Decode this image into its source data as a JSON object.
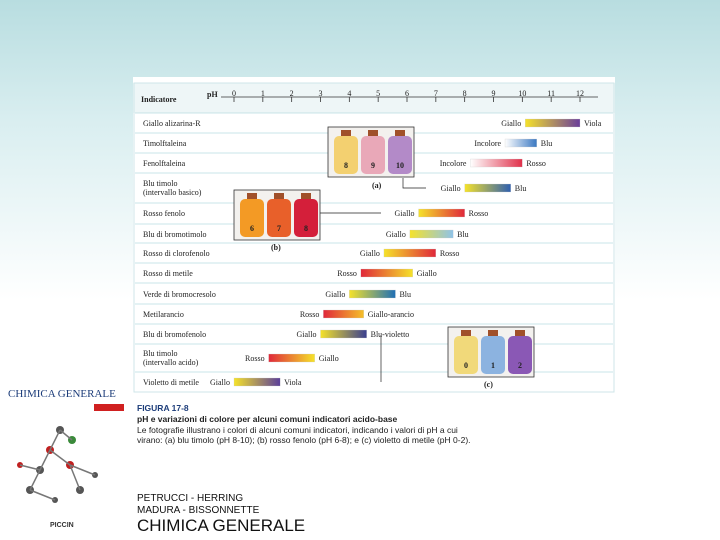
{
  "chart_data": {
    "type": "range",
    "y_label": "Indicatore",
    "x_label": "pH",
    "xlim": [
      0,
      12
    ],
    "xticks": [
      0,
      1,
      2,
      3,
      4,
      5,
      6,
      7,
      8,
      9,
      10,
      11,
      12
    ],
    "rows": [
      {
        "name": "Giallo alizarina-R",
        "low": 10.1,
        "high": 12.0,
        "low_label": "Giallo",
        "high_label": "Viola",
        "colors": [
          "#f5e22a",
          "#6a3d9a"
        ]
      },
      {
        "name": "Timolftaleina",
        "low": 9.4,
        "high": 10.5,
        "low_label": "Incolore",
        "high_label": "Blu",
        "colors": [
          "#ffffff",
          "#3a78c2"
        ]
      },
      {
        "name": "Fenolftaleina",
        "low": 8.2,
        "high": 10.0,
        "low_label": "Incolore",
        "high_label": "Rosso",
        "colors": [
          "#ffffff",
          "#e0304a"
        ]
      },
      {
        "name": "Blu timolo\n(intervallo basico)",
        "low": 8.0,
        "high": 9.6,
        "low_label": "Giallo",
        "high_label": "Blu",
        "colors": [
          "#f5e22a",
          "#2e5fb0"
        ]
      },
      {
        "name": "Rosso fenolo",
        "low": 6.4,
        "high": 8.0,
        "low_label": "Giallo",
        "high_label": "Rosso",
        "colors": [
          "#f5e22a",
          "#e0283a"
        ]
      },
      {
        "name": "Blu di bromotimolo",
        "low": 6.1,
        "high": 7.6,
        "low_label": "Giallo",
        "high_label": "Blu",
        "colors": [
          "#f5e22a",
          "#8fc3e8"
        ]
      },
      {
        "name": "Rosso di clorofenolo",
        "low": 5.2,
        "high": 7.0,
        "low_label": "Giallo",
        "high_label": "Rosso",
        "colors": [
          "#f5e22a",
          "#e0283a"
        ]
      },
      {
        "name": "Rosso di metile",
        "low": 4.4,
        "high": 6.2,
        "low_label": "Rosso",
        "high_label": "Giallo",
        "colors": [
          "#e0283a",
          "#f5e22a"
        ]
      },
      {
        "name": "Verde di bromocresolo",
        "low": 4.0,
        "high": 5.6,
        "low_label": "Giallo",
        "high_label": "Blu",
        "colors": [
          "#f5e22a",
          "#1f6fb5"
        ]
      },
      {
        "name": "Metilarancio",
        "low": 3.1,
        "high": 4.5,
        "low_label": "Rosso",
        "high_label": "Giallo-arancio",
        "colors": [
          "#e0283a",
          "#f5c02a"
        ]
      },
      {
        "name": "Blu di bromofenolo",
        "low": 3.0,
        "high": 4.6,
        "low_label": "Giallo",
        "high_label": "Blu-violetto",
        "colors": [
          "#f5e22a",
          "#3a3f8f"
        ]
      },
      {
        "name": "Blu timolo\n(intervallo acido)",
        "low": 1.2,
        "high": 2.8,
        "low_label": "Rosso",
        "high_label": "Giallo",
        "colors": [
          "#e0283a",
          "#f5e22a"
        ]
      },
      {
        "name": "Violetto di metile",
        "low": 0.0,
        "high": 1.6,
        "low_label": "Giallo",
        "high_label": "Viola",
        "colors": [
          "#f5e22a",
          "#5b3f9a"
        ]
      }
    ],
    "photos": [
      {
        "label": "(a)",
        "numbers": [
          8,
          9,
          10
        ],
        "colors": [
          "#f3d070",
          "#e9a8b8",
          "#b38ac8"
        ]
      },
      {
        "label": "(b)",
        "numbers": [
          6,
          7,
          8
        ],
        "colors": [
          "#f39a25",
          "#e8602a",
          "#d41f3a"
        ]
      },
      {
        "label": "(c)",
        "numbers": [
          0,
          1,
          2
        ],
        "colors": [
          "#f1d97a",
          "#8cb3e0",
          "#8a58b5"
        ]
      }
    ]
  },
  "caption": {
    "figure": "FIGURA 17-8",
    "title": "pH e variazioni di colore per alcuni comuni indicatori acido-base",
    "text": "Le fotografie illustrano i colori di alcuni comuni indicatori, indicando i valori di pH a cui virano: (a) blu timolo (pH 8-10); (b) rosso fenolo (pH 6-8); e (c) violetto di metile (pH 0-2)."
  },
  "cover": {
    "title": "CHIMICA GENERALE",
    "publisher": "PICCIN"
  },
  "credits": {
    "line1": "PETRUCCI - HERRING",
    "line2": "MADURA - BISSONNETTE",
    "book": "CHIMICA GENERALE"
  }
}
